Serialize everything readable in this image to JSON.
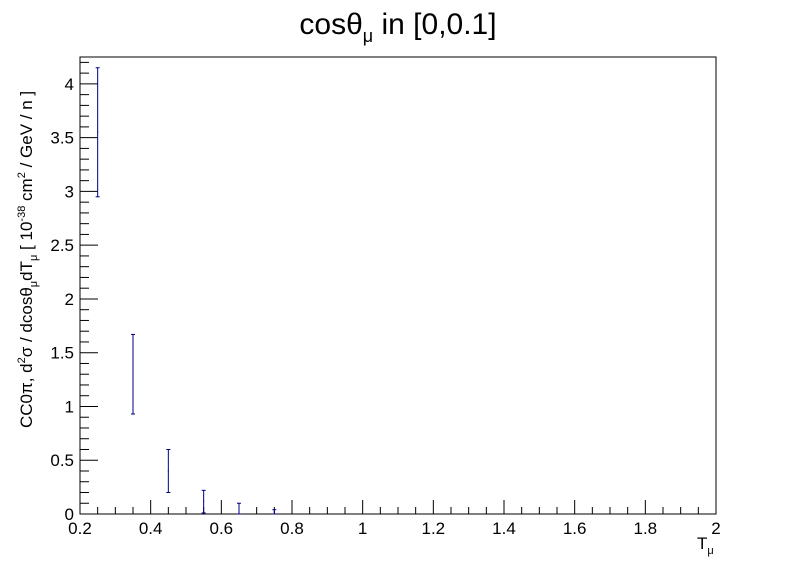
{
  "chart_data": {
    "type": "scatter",
    "title": {
      "base": "cosθ",
      "sub": "μ",
      "rest": " in [0,0.1]"
    },
    "xlabel": {
      "base": "T",
      "sub": "μ"
    },
    "ylabel": {
      "p1": "CC0π, d",
      "sup1": "2",
      "p2": "σ / dcosθ",
      "sub1": "μ",
      "p3": "dT",
      "sub2": "μ",
      "p4": " [ 10",
      "sup2": "-38",
      "p5": " cm",
      "sup3": "2",
      "p6": " / GeV / n ]"
    },
    "xlim": [
      0.2,
      2.0
    ],
    "ylim": [
      0,
      4.25
    ],
    "x_ticks": [
      "0.2",
      "0.4",
      "0.6",
      "0.8",
      "1",
      "1.2",
      "1.4",
      "1.6",
      "1.8",
      "2"
    ],
    "y_ticks": [
      "0",
      "0.5",
      "1",
      "1.5",
      "2",
      "2.5",
      "3",
      "3.5",
      "4"
    ],
    "series": [
      {
        "color": "#000080",
        "points": [
          {
            "x": 0.25,
            "xerr": 0.05,
            "y": 3.55,
            "ylow": 2.95,
            "yhigh": 4.15
          },
          {
            "x": 0.35,
            "xerr": 0.05,
            "y": 1.3,
            "ylow": 0.93,
            "yhigh": 1.67
          },
          {
            "x": 0.45,
            "xerr": 0.05,
            "y": 0.4,
            "ylow": 0.2,
            "yhigh": 0.6
          },
          {
            "x": 0.55,
            "xerr": 0.05,
            "y": 0.12,
            "ylow": 0.01,
            "yhigh": 0.22
          },
          {
            "x": 0.65,
            "xerr": 0.05,
            "y": 0.05,
            "ylow": 0.0,
            "yhigh": 0.1
          },
          {
            "x": 0.75,
            "xerr": 0.05,
            "y": 0.02,
            "ylow": 0.0,
            "yhigh": 0.04
          }
        ]
      }
    ]
  }
}
